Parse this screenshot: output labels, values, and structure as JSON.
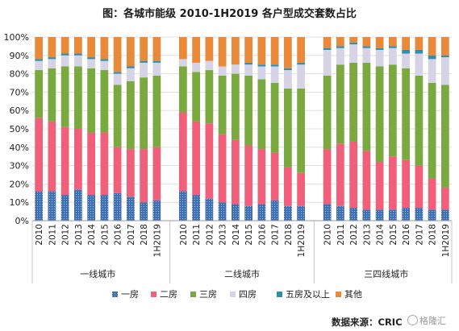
{
  "chart_data": {
    "type": "bar",
    "stacked": true,
    "percent": true,
    "title": "图：各城市能级 2010-1H2019 各户型成交套数占比",
    "categories": [
      "2010",
      "2011",
      "2012",
      "2013",
      "2014",
      "2015",
      "2016",
      "2017",
      "2018",
      "1H2019"
    ],
    "groups": [
      "一线城市",
      "二线城市",
      "三四线城市"
    ],
    "ylim": [
      0,
      100
    ],
    "yticks": [
      "0%",
      "10%",
      "20%",
      "30%",
      "40%",
      "50%",
      "60%",
      "70%",
      "80%",
      "90%",
      "100%"
    ],
    "grid": true,
    "legend_position": "bottom",
    "series": [
      {
        "name": "一房",
        "color": "#3f6fb0",
        "values": {
          "一线城市": [
            16,
            16,
            14,
            17,
            14,
            14,
            15,
            13,
            10,
            11
          ],
          "二线城市": [
            16,
            14,
            12,
            10,
            9,
            8,
            9,
            11,
            8,
            8
          ],
          "三四线城市": [
            9,
            8,
            7,
            6,
            6,
            6,
            7,
            7,
            6,
            6
          ]
        }
      },
      {
        "name": "二房",
        "color": "#f0607a",
        "values": {
          "一线城市": [
            40,
            38,
            37,
            33,
            34,
            34,
            25,
            26,
            29,
            29
          ],
          "二线城市": [
            43,
            40,
            41,
            37,
            35,
            33,
            30,
            26,
            21,
            18
          ],
          "三四线城市": [
            30,
            34,
            36,
            32,
            26,
            29,
            26,
            23,
            17,
            12
          ]
        }
      },
      {
        "name": "三房",
        "color": "#79a93f",
        "values": {
          "一线城市": [
            26,
            29,
            33,
            34,
            35,
            34,
            34,
            37,
            39,
            39
          ],
          "二线城市": [
            25,
            27,
            29,
            32,
            36,
            38,
            38,
            38,
            43,
            46
          ],
          "三四线城市": [
            40,
            43,
            43,
            48,
            52,
            50,
            50,
            49,
            52,
            56
          ]
        }
      },
      {
        "name": "四房",
        "color": "#d6d3e6",
        "values": {
          "一线城市": [
            5,
            5,
            6,
            6,
            5,
            5,
            6,
            7,
            8,
            7
          ],
          "二线城市": [
            4,
            5,
            5,
            5,
            5,
            6,
            7,
            9,
            10,
            13
          ],
          "三四线城市": [
            14,
            9,
            10,
            8,
            9,
            9,
            8,
            12,
            13,
            15
          ]
        }
      },
      {
        "name": "五房及以上",
        "color": "#2e8fb1",
        "values": {
          "一线城市": [
            1,
            1,
            1,
            1,
            1,
            1,
            1,
            1,
            1,
            1
          ],
          "二线城市": [
            0,
            0,
            0,
            0,
            0,
            1,
            1,
            1,
            1,
            1
          ],
          "三四线城市": [
            1,
            1,
            1,
            1,
            1,
            1,
            2,
            2,
            2,
            1
          ]
        }
      },
      {
        "name": "其他",
        "color": "#e88a3a",
        "values": {
          "一线城市": [
            12,
            11,
            9,
            9,
            11,
            12,
            19,
            16,
            13,
            13
          ],
          "二线城市": [
            12,
            14,
            13,
            16,
            15,
            14,
            15,
            15,
            17,
            14
          ],
          "三四线城市": [
            6,
            5,
            3,
            5,
            6,
            5,
            7,
            7,
            10,
            10
          ]
        }
      }
    ]
  },
  "source": "数据来源：CRIC",
  "watermark": "格隆汇"
}
